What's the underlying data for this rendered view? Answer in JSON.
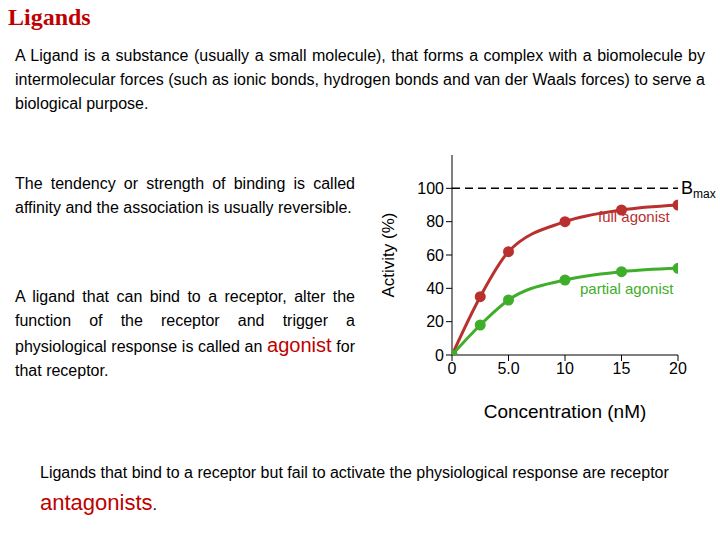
{
  "title": "Ligands",
  "intro": "A Ligand  is a substance (usually a small molecule), that forms a complex with a biomolecule  by intermolecular  forces  (such  as ionic  bonds, hydrogen  bonds and van der Waals forces) to serve a biological purpose.",
  "affinity": "The tendency or strength of binding is called affinity and the association is usually reversible.",
  "agonist": {
    "before": "A ligand that can bind to a receptor, alter the function of the receptor and trigger a physiological response is called an",
    "term": "agonist",
    "after": "for that receptor."
  },
  "antagonist": {
    "before": "Ligands that bind to a receptor but fail to activate the physiological response are receptor",
    "term": "antagonists",
    "after": "."
  },
  "chart_data": {
    "type": "line",
    "x": [
      0,
      2.5,
      5,
      10,
      15,
      20
    ],
    "series": [
      {
        "name": "full agonist",
        "color": "#b8312f",
        "marker": "circle",
        "values": [
          0,
          35,
          62,
          80,
          87,
          90
        ]
      },
      {
        "name": "partial agonist",
        "color": "#3fae2a",
        "marker": "circle",
        "values": [
          0,
          18,
          33,
          45,
          50,
          52
        ]
      }
    ],
    "xlabel": "Concentration (nM)",
    "ylabel": "Activity (%)",
    "xlim": [
      0,
      20
    ],
    "xticks": [
      0,
      {
        "value": 5,
        "label": "5.0"
      },
      10,
      15,
      20
    ],
    "ylim": [
      0,
      120
    ],
    "yticks": [
      0,
      20,
      40,
      60,
      80,
      100
    ],
    "grid": false,
    "reference_line": {
      "value": 100,
      "label": "Bmax"
    }
  }
}
